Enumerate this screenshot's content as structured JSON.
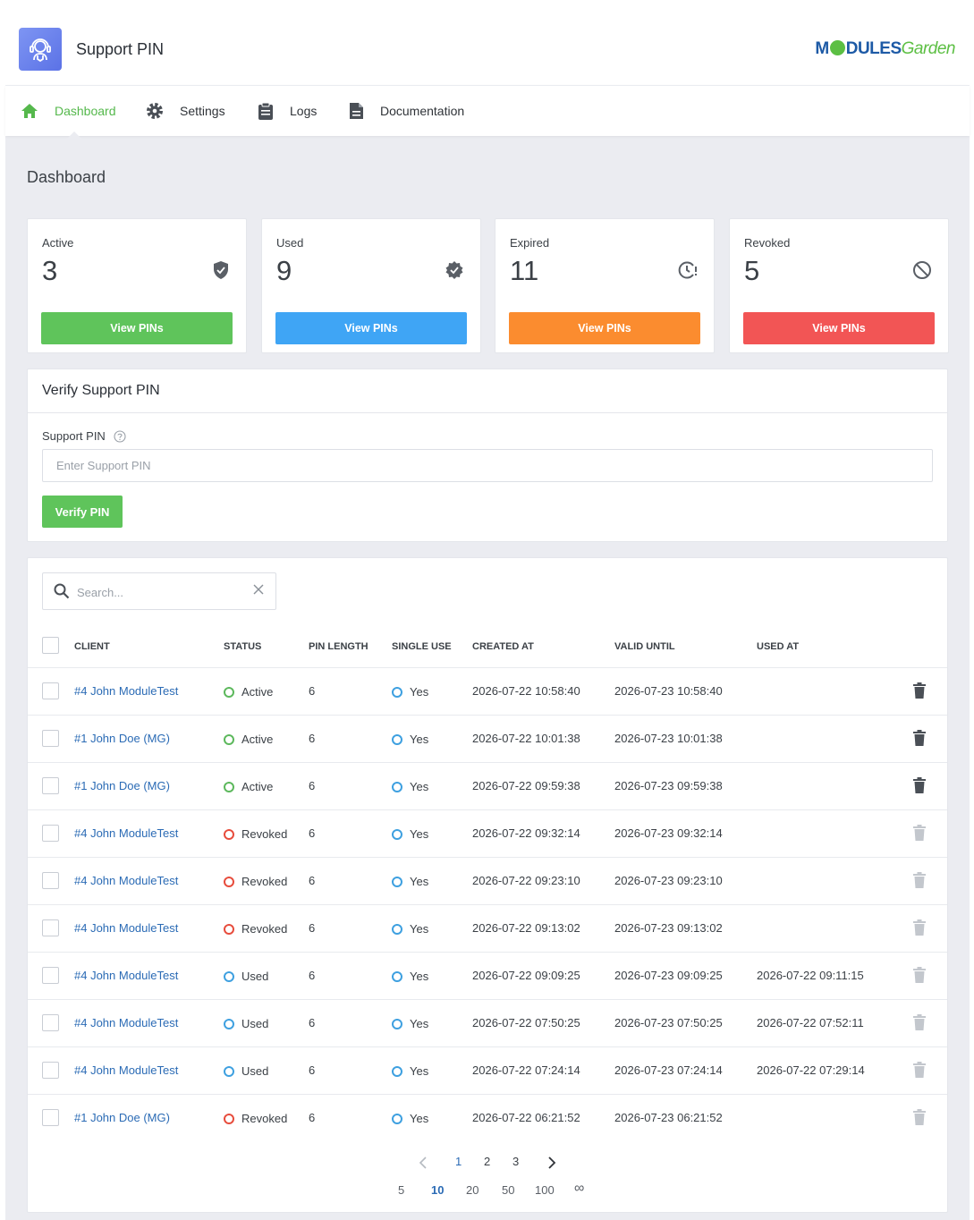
{
  "app": {
    "title": "Support PIN",
    "logo_text_a": "M",
    "logo_text_b": "DULES",
    "logo_text_c": "Garden"
  },
  "nav": [
    {
      "label": "Dashboard",
      "icon": "home-icon",
      "active": true
    },
    {
      "label": "Settings",
      "icon": "gear-icon",
      "active": false
    },
    {
      "label": "Logs",
      "icon": "clipboard-icon",
      "active": false
    },
    {
      "label": "Documentation",
      "icon": "document-icon",
      "active": false
    }
  ],
  "page_title": "Dashboard",
  "cards": [
    {
      "label": "Active",
      "value": "3",
      "button": "View PINs",
      "color": "#5fc45b",
      "icon": "shield-icon"
    },
    {
      "label": "Used",
      "value": "9",
      "button": "View PINs",
      "color": "#3fa5f5",
      "icon": "verified-badge-icon"
    },
    {
      "label": "Expired",
      "value": "11",
      "button": "View PINs",
      "color": "#fb8c2f",
      "icon": "clock-alert-icon"
    },
    {
      "label": "Revoked",
      "value": "5",
      "button": "View PINs",
      "color": "#f25555",
      "icon": "block-icon"
    }
  ],
  "verify": {
    "title": "Verify Support PIN",
    "field_label": "Support PIN",
    "placeholder": "Enter Support PIN",
    "button": "Verify PIN"
  },
  "search": {
    "placeholder": "Search..."
  },
  "columns": [
    "CLIENT",
    "STATUS",
    "PIN LENGTH",
    "SINGLE USE",
    "CREATED AT",
    "VALID UNTIL",
    "USED AT"
  ],
  "rows": [
    {
      "client": "#4 John ModuleTest",
      "status": "Active",
      "pin_length": "6",
      "single_use": "Yes",
      "created": "2026-07-22 10:58:40",
      "valid": "2026-07-23 10:58:40",
      "used": ""
    },
    {
      "client": "#1 John Doe (MG)",
      "status": "Active",
      "pin_length": "6",
      "single_use": "Yes",
      "created": "2026-07-22 10:01:38",
      "valid": "2026-07-23 10:01:38",
      "used": ""
    },
    {
      "client": "#1 John Doe (MG)",
      "status": "Active",
      "pin_length": "6",
      "single_use": "Yes",
      "created": "2026-07-22 09:59:38",
      "valid": "2026-07-23 09:59:38",
      "used": ""
    },
    {
      "client": "#4 John ModuleTest",
      "status": "Revoked",
      "pin_length": "6",
      "single_use": "Yes",
      "created": "2026-07-22 09:32:14",
      "valid": "2026-07-23 09:32:14",
      "used": ""
    },
    {
      "client": "#4 John ModuleTest",
      "status": "Revoked",
      "pin_length": "6",
      "single_use": "Yes",
      "created": "2026-07-22 09:23:10",
      "valid": "2026-07-23 09:23:10",
      "used": ""
    },
    {
      "client": "#4 John ModuleTest",
      "status": "Revoked",
      "pin_length": "6",
      "single_use": "Yes",
      "created": "2026-07-22 09:13:02",
      "valid": "2026-07-23 09:13:02",
      "used": ""
    },
    {
      "client": "#4 John ModuleTest",
      "status": "Used",
      "pin_length": "6",
      "single_use": "Yes",
      "created": "2026-07-22 09:09:25",
      "valid": "2026-07-23 09:09:25",
      "used": "2026-07-22 09:11:15"
    },
    {
      "client": "#4 John ModuleTest",
      "status": "Used",
      "pin_length": "6",
      "single_use": "Yes",
      "created": "2026-07-22 07:50:25",
      "valid": "2026-07-23 07:50:25",
      "used": "2026-07-22 07:52:11"
    },
    {
      "client": "#4 John ModuleTest",
      "status": "Used",
      "pin_length": "6",
      "single_use": "Yes",
      "created": "2026-07-22 07:24:14",
      "valid": "2026-07-23 07:24:14",
      "used": "2026-07-22 07:29:14"
    },
    {
      "client": "#1 John Doe (MG)",
      "status": "Revoked",
      "pin_length": "6",
      "single_use": "Yes",
      "created": "2026-07-22 06:21:52",
      "valid": "2026-07-23 06:21:52",
      "used": ""
    }
  ],
  "pagination": {
    "pages": [
      "1",
      "2",
      "3"
    ],
    "current": "1",
    "sizes": [
      "5",
      "10",
      "20",
      "50",
      "100",
      "∞"
    ],
    "current_size": "10"
  }
}
